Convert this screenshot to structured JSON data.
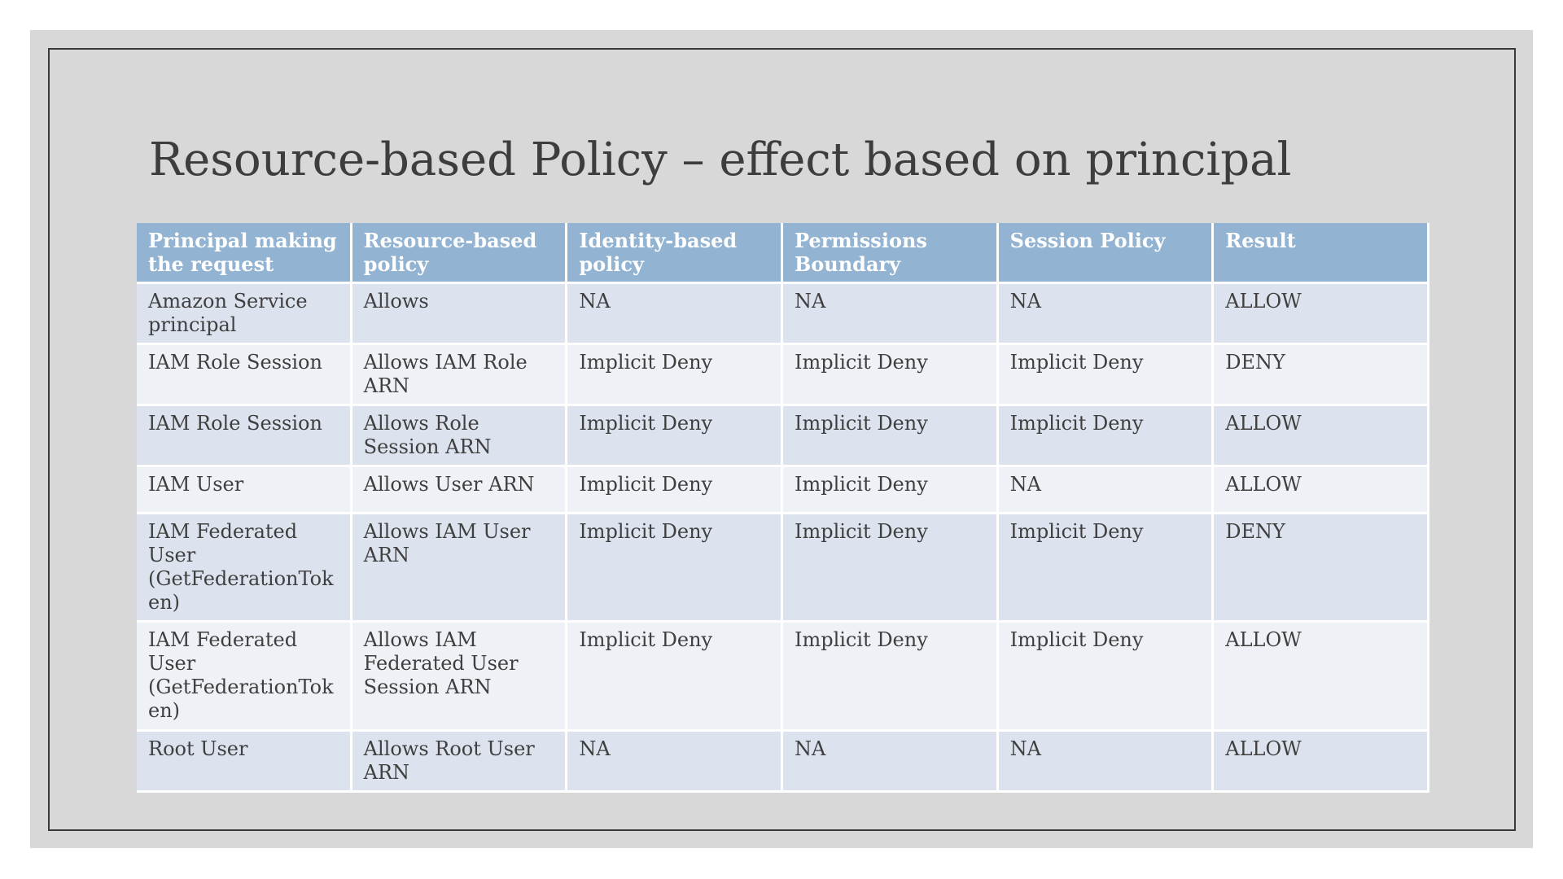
{
  "slide": {
    "title": "Resource-based Policy – effect based on principal",
    "colors": {
      "page_background": "#ffffff",
      "slide_background": "#d8d8d8",
      "frame_border": "#3a3a3a",
      "header_background": "#92b3d1",
      "header_text": "#ffffff",
      "row_dark": "#dce3ee",
      "row_light": "#eef1f6",
      "body_text": "#3f3f3f",
      "cell_divider": "#ffffff"
    }
  },
  "table": {
    "columns": [
      "Principal making the request",
      "Resource-based policy",
      "Identity-based policy",
      "Permissions Boundary",
      "Session Policy",
      "Result"
    ],
    "rows": [
      [
        "Amazon Service principal",
        "Allows",
        "NA",
        "NA",
        "NA",
        "ALLOW"
      ],
      [
        "IAM Role Session",
        "Allows IAM Role ARN",
        "Implicit Deny",
        "Implicit Deny",
        "Implicit Deny",
        "DENY"
      ],
      [
        "IAM Role Session",
        "Allows Role Session ARN",
        "Implicit Deny",
        "Implicit Deny",
        "Implicit Deny",
        "ALLOW"
      ],
      [
        "IAM User",
        "Allows User ARN",
        "Implicit Deny",
        "Implicit Deny",
        "NA",
        "ALLOW"
      ],
      [
        "IAM Federated User (GetFederationToken)",
        "Allows IAM User ARN",
        "Implicit Deny",
        "Implicit Deny",
        "Implicit Deny",
        "DENY"
      ],
      [
        "IAM Federated User (GetFederationToken)",
        "Allows IAM Federated User Session ARN",
        "Implicit Deny",
        "Implicit Deny",
        "Implicit Deny",
        "ALLOW"
      ],
      [
        "Root User",
        "Allows Root User ARN",
        "NA",
        "NA",
        "NA",
        "ALLOW"
      ]
    ]
  }
}
